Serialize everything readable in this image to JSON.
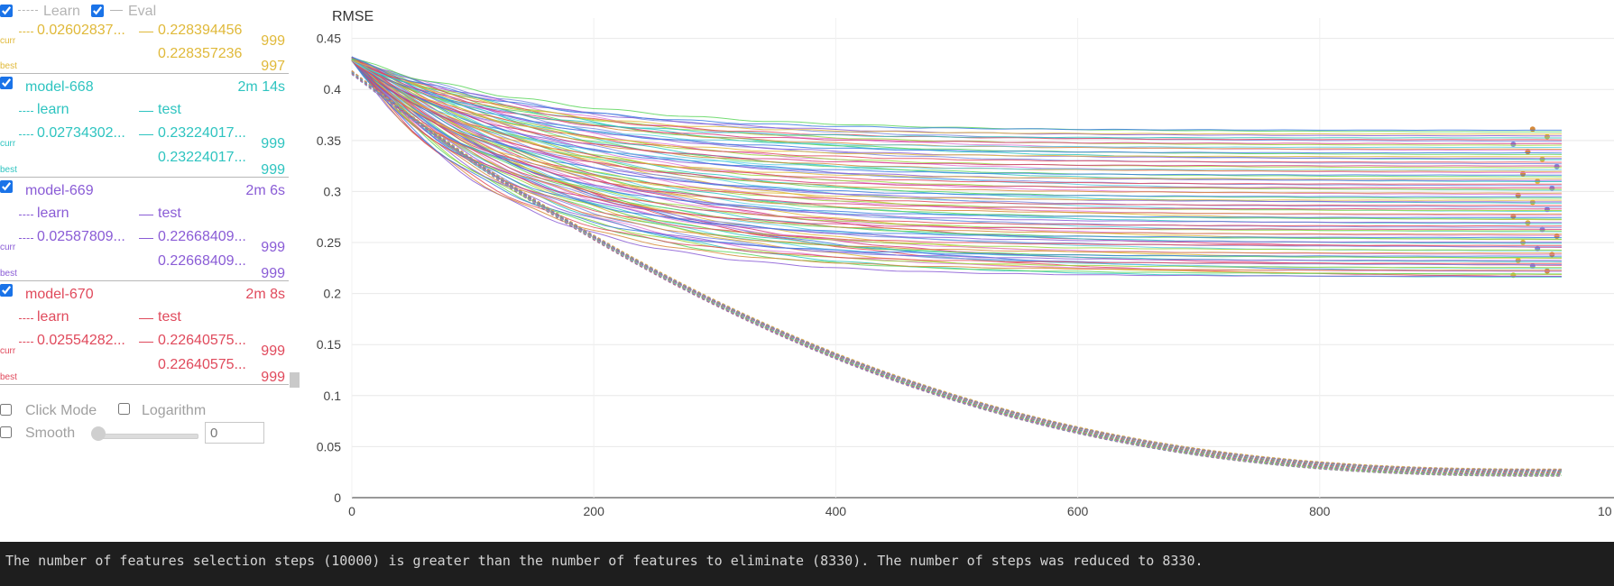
{
  "header": {
    "learn_label": "Learn",
    "eval_label": "Eval"
  },
  "row_labels": {
    "curr": "curr",
    "best": "best"
  },
  "models": [
    {
      "name": "",
      "time": "",
      "learn_label": "",
      "test_label": "",
      "learn_curr": "0.02602837...",
      "test_curr": "0.228394456",
      "test_best": "0.228357236",
      "curr_iter": "999",
      "best_iter": "997",
      "color": "#e0b93a"
    },
    {
      "name": "model-668",
      "time": "2m 14s",
      "learn_label": "learn",
      "test_label": "test",
      "learn_curr": "0.02734302...",
      "test_curr": "0.23224017...",
      "test_best": "0.23224017...",
      "curr_iter": "999",
      "best_iter": "999",
      "color": "#2ec4c0"
    },
    {
      "name": "model-669",
      "time": "2m 6s",
      "learn_label": "learn",
      "test_label": "test",
      "learn_curr": "0.02587809...",
      "test_curr": "0.22668409...",
      "test_best": "0.22668409...",
      "curr_iter": "999",
      "best_iter": "999",
      "color": "#8a5cd6"
    },
    {
      "name": "model-670",
      "time": "2m 8s",
      "learn_label": "learn",
      "test_label": "test",
      "learn_curr": "0.02554282...",
      "test_curr": "0.22640575...",
      "test_best": "0.22640575...",
      "curr_iter": "999",
      "best_iter": "999",
      "color": "#e04a5c"
    }
  ],
  "controls": {
    "click_mode_label": "Click Mode",
    "logarithm_label": "Logarithm",
    "smooth_label": "Smooth",
    "smooth_value": "0"
  },
  "chart_data": {
    "type": "line",
    "title": "RMSE",
    "xlabel": "",
    "ylabel": "",
    "xlim": [
      0,
      1000
    ],
    "ylim": [
      0,
      0.47
    ],
    "x_ticks": [
      0,
      200,
      400,
      600,
      800
    ],
    "x_tick_labels": [
      "0",
      "200",
      "400",
      "600",
      "800"
    ],
    "y_ticks": [
      0,
      0.05,
      0.1,
      0.15,
      0.2,
      0.25,
      0.3,
      0.35,
      0.4,
      0.45
    ],
    "y_tick_labels": [
      "0",
      "0.05",
      "0.1",
      "0.15",
      "0.2",
      "0.25",
      "0.3",
      "0.35",
      "0.4",
      "0.45"
    ],
    "grid": true,
    "series_summary": {
      "learn_start": 0.415,
      "learn_end_range": [
        0.021,
        0.028
      ],
      "test_start": 0.43,
      "test_end_range": [
        0.215,
        0.36
      ]
    }
  },
  "console": {
    "message": "The number of features selection steps (10000) is greater than the number of features to eliminate (8330). The number of steps was reduced to 8330."
  }
}
